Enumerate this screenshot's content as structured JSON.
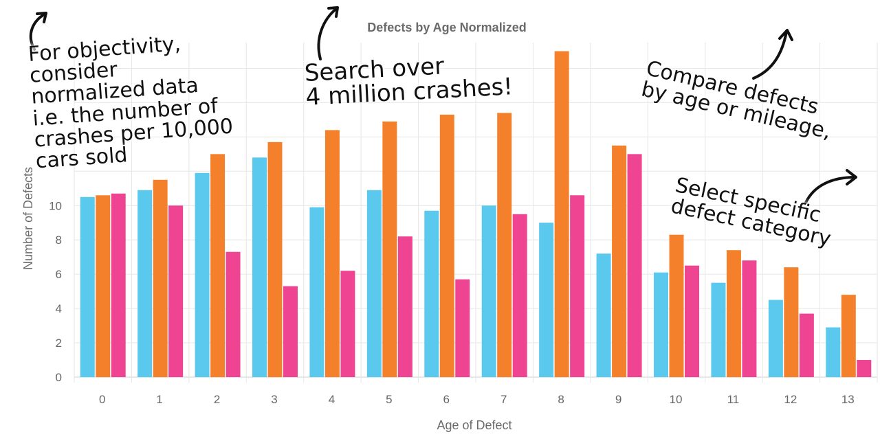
{
  "chart_data": {
    "type": "bar",
    "title": "Defects by Age Normalized",
    "xlabel": "Age of Defect",
    "ylabel": "Number of Defects",
    "categories": [
      "0",
      "1",
      "2",
      "3",
      "4",
      "5",
      "6",
      "7",
      "8",
      "9",
      "10",
      "11",
      "12",
      "13"
    ],
    "series": [
      {
        "color": "#5bc8ee",
        "values": [
          10.5,
          10.9,
          11.9,
          12.8,
          9.9,
          10.9,
          9.7,
          10.0,
          9.0,
          7.2,
          6.1,
          5.5,
          4.5,
          2.9
        ]
      },
      {
        "color": "#f5802b",
        "values": [
          10.6,
          11.5,
          13.0,
          13.7,
          14.4,
          14.9,
          15.3,
          15.4,
          19.0,
          13.5,
          8.3,
          7.4,
          6.4,
          4.8
        ]
      },
      {
        "color": "#ee4492",
        "values": [
          10.7,
          10.0,
          7.3,
          5.3,
          6.2,
          8.2,
          5.7,
          9.5,
          10.6,
          13.0,
          6.5,
          6.8,
          3.7,
          1.0
        ]
      }
    ],
    "y_ticks": [
      0,
      2,
      4,
      6,
      8,
      10
    ],
    "ylim": [
      0,
      19.5
    ],
    "grid": true,
    "legend": "none"
  },
  "annotations": [
    {
      "id": "normalized",
      "lines": [
        "For objectivity,",
        "consider",
        "normalized data",
        "i.e. the number of",
        "crashes per 10,000",
        "cars sold"
      ]
    },
    {
      "id": "search",
      "lines": [
        "Search over",
        "4 million crashes!"
      ]
    },
    {
      "id": "compare",
      "lines": [
        "Compare defects",
        "by age or mileage,"
      ]
    },
    {
      "id": "category",
      "lines": [
        "Select specific",
        "defect category"
      ]
    }
  ]
}
